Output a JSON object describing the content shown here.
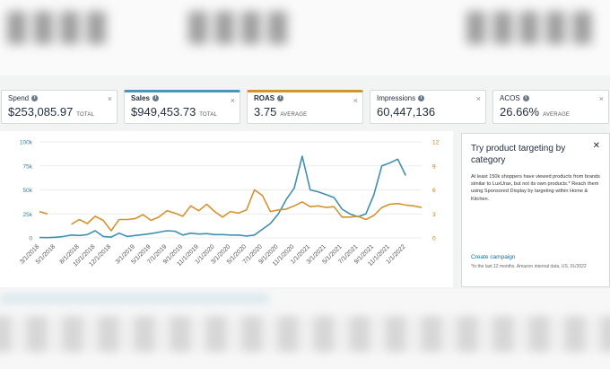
{
  "metrics": [
    {
      "label": "Spend",
      "value": "$253,085.97",
      "unit": "TOTAL"
    },
    {
      "label": "Sales",
      "value": "$949,453.73",
      "unit": "TOTAL"
    },
    {
      "label": "ROAS",
      "value": "3.75",
      "unit": "AVERAGE"
    },
    {
      "label": "Impressions",
      "value": "60,447,136",
      "unit": "TOTAL"
    },
    {
      "label": "ACOS",
      "value": "26.66%",
      "unit": "AVERAGE"
    }
  ],
  "colors": {
    "sales": "#3f8fb0",
    "roas": "#d3932f"
  },
  "promo": {
    "title": "Try product targeting by category",
    "body": "At least 150k shoppers have viewed products from brands similar to LuxUrax, but not its own products.* Reach them using Sponsored Display by targeting within Home & Kitchen.",
    "link": "Create campaign",
    "note": "*In the last 12 months. Amazon internal data, US, 01/2022"
  },
  "chart_data": {
    "type": "line",
    "x": [
      "3/1/2018",
      "4/1/2018",
      "5/1/2018",
      "6/1/2018",
      "7/1/2018",
      "8/1/2018",
      "9/1/2018",
      "10/1/2018",
      "11/1/2018",
      "12/1/2018",
      "1/1/2019",
      "2/1/2019",
      "3/1/2019",
      "4/1/2019",
      "5/1/2019",
      "6/1/2019",
      "7/1/2019",
      "8/1/2019",
      "9/1/2019",
      "10/1/2019",
      "11/1/2019",
      "12/1/2019",
      "1/1/2020",
      "2/1/2020",
      "3/1/2020",
      "4/1/2020",
      "5/1/2020",
      "6/1/2020",
      "7/1/2020",
      "8/1/2020",
      "9/1/2020",
      "10/1/2020",
      "11/1/2020",
      "12/1/2020",
      "1/1/2021",
      "2/1/2021",
      "3/1/2021",
      "4/1/2021",
      "5/1/2021",
      "6/1/2021",
      "7/1/2021",
      "8/1/2021",
      "9/1/2021",
      "10/1/2021",
      "11/1/2021",
      "12/1/2021",
      "1/1/2022",
      "2/1/2022",
      "3/1/2022"
    ],
    "x_tick_labels": [
      "3/1/2018",
      "5/1/2018",
      "8/1/2018",
      "10/1/2018",
      "12/1/2018",
      "3/1/2019",
      "5/1/2019",
      "7/1/2019",
      "9/1/2019",
      "11/1/2019",
      "1/1/2020",
      "3/1/2020",
      "5/1/2020",
      "7/1/2020",
      "9/1/2020",
      "11/1/2020",
      "1/1/2021",
      "3/1/2021",
      "5/1/2021",
      "7/1/2021",
      "9/1/2021",
      "11/1/2021",
      "1/1/2022"
    ],
    "series": [
      {
        "name": "Sales",
        "axis": "left",
        "values": [
          500,
          300,
          700,
          1500,
          3000,
          2500,
          3500,
          7500,
          1500,
          800,
          5000,
          1500,
          2500,
          3500,
          4500,
          6000,
          7500,
          7000,
          3000,
          5000,
          4000,
          4500,
          3500,
          3500,
          3000,
          3000,
          2000,
          3000,
          9000,
          15000,
          25000,
          40000,
          52000,
          85000,
          50000,
          48000,
          45000,
          42000,
          30000,
          25000,
          22000,
          25000,
          45000,
          75000,
          78000,
          82000,
          65000,
          null,
          null
        ]
      },
      {
        "name": "ROAS",
        "axis": "right",
        "values": [
          3.3,
          3.0,
          null,
          null,
          1.7,
          2.3,
          1.8,
          2.7,
          2.2,
          0.9,
          2.3,
          2.3,
          2.4,
          2.9,
          2.2,
          2.6,
          3.4,
          3.1,
          2.7,
          4.0,
          3.4,
          4.2,
          3.3,
          2.6,
          3.3,
          3.1,
          3.5,
          6.0,
          5.3,
          3.3,
          3.5,
          3.6,
          4.0,
          4.5,
          3.9,
          4.0,
          3.8,
          3.9,
          2.6,
          2.6,
          2.7,
          2.3,
          2.8,
          3.8,
          4.2,
          4.3,
          4.1,
          4.0,
          3.8
        ]
      }
    ],
    "y_left": {
      "ticks": [
        "0",
        "25k",
        "50k",
        "75k",
        "100k"
      ],
      "range": [
        0,
        100000
      ]
    },
    "y_right": {
      "ticks": [
        "0",
        "3",
        "6",
        "9",
        "12"
      ],
      "range": [
        0,
        12
      ]
    },
    "grid": true
  }
}
